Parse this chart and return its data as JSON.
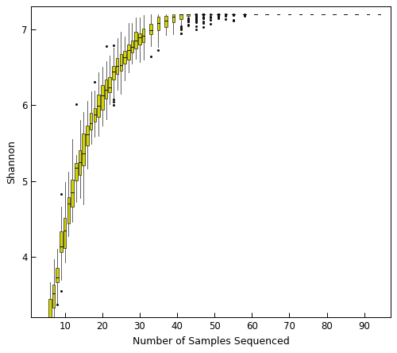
{
  "xlabel": "Number of Samples Sequenced",
  "ylabel": "Shannon",
  "xlim": [
    1,
    97
  ],
  "ylim": [
    3.2,
    7.3
  ],
  "xticks": [
    10,
    20,
    30,
    40,
    50,
    60,
    70,
    80,
    90
  ],
  "yticks": [
    4.0,
    5.0,
    6.0,
    7.0
  ],
  "box_color": "#d4d400",
  "box_edge_color": "#222222",
  "whisker_color": "#444444",
  "median_color": "#111111",
  "flier_color": "#111111",
  "background_color": "#ffffff",
  "seed": 42,
  "asymptote": 7.12,
  "k": 0.085,
  "sigma_base": 0.38,
  "sigma_decay": 0.055
}
